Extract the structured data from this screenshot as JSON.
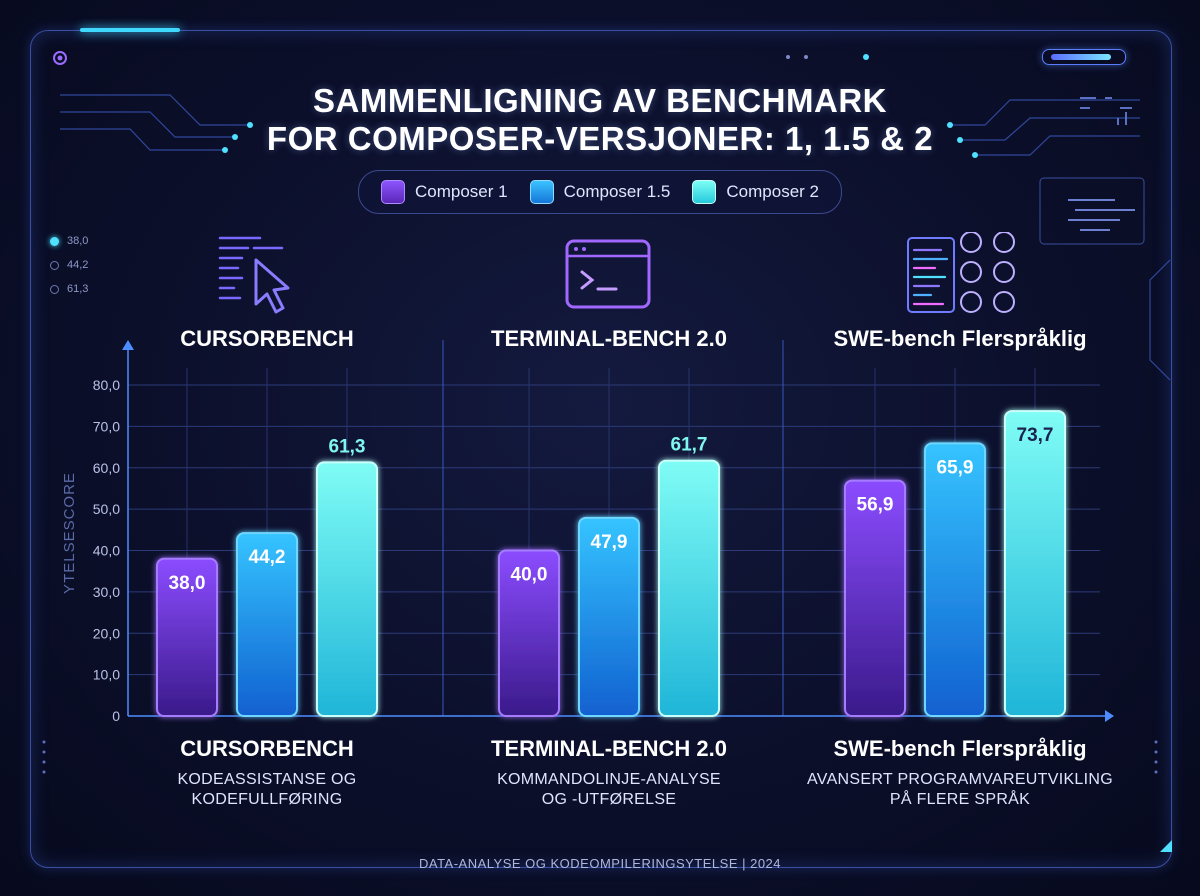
{
  "chart_data": {
    "type": "bar",
    "title": "SAMMENLIGNING AV BENCHMARK\nFOR COMPOSER-VERSJONER: 1, 1.5 & 2",
    "ylabel": "YTELSESCORE",
    "ylim": [
      0,
      80
    ],
    "yticks": [
      "0",
      "10,0",
      "20,0",
      "30,0",
      "40,0",
      "50,0",
      "60,0",
      "70,0",
      "80,0"
    ],
    "categories": [
      "CURSORBENCH",
      "TERMINAL-BENCH 2.0",
      "SWE-bench Flerspråklig"
    ],
    "series": [
      {
        "name": "Composer 1",
        "values": [
          38.0,
          40.0,
          56.9
        ],
        "labels": [
          "38,0",
          "40,0",
          "56,9"
        ],
        "color": "#7b3fe0"
      },
      {
        "name": "Composer 1.5",
        "values": [
          44.2,
          47.9,
          65.9
        ],
        "labels": [
          "44,2",
          "47,9",
          "65,9"
        ],
        "color": "#1aa7f5"
      },
      {
        "name": "Composer 2",
        "values": [
          61.3,
          61.7,
          73.7
        ],
        "labels": [
          "61,3",
          "61,7",
          "73,7"
        ],
        "color": "#52f0ec"
      }
    ],
    "legend": "top-center",
    "grid": true
  },
  "panels": [
    {
      "head": "CURSORBENCH",
      "title": "CURSORBENCH",
      "sub1": "KODEASSISTANSE OG",
      "sub2": "KODEFULLFØRING"
    },
    {
      "head": "TERMINAL-BENCH 2.0",
      "title": "TERMINAL-BENCH 2.0",
      "sub1": "KOMMANDOLINJE-ANALYSE",
      "sub2": "OG -UTFØRELSE"
    },
    {
      "head": "SWE-bench Flerspråklig",
      "title": "SWE-bench Flerspråklig",
      "sub1": "AVANSERT PROGRAMVAREUTVIKLING",
      "sub2": "PÅ FLERE SPRÅK"
    }
  ],
  "side_legend": [
    "38,0",
    "44,2",
    "61,3"
  ],
  "footer": "DATA-ANALYSE OG KODEOMPILERINGSYTELSE | 2024",
  "icons": [
    "cursor-icon",
    "terminal-icon",
    "code-window-icon"
  ]
}
